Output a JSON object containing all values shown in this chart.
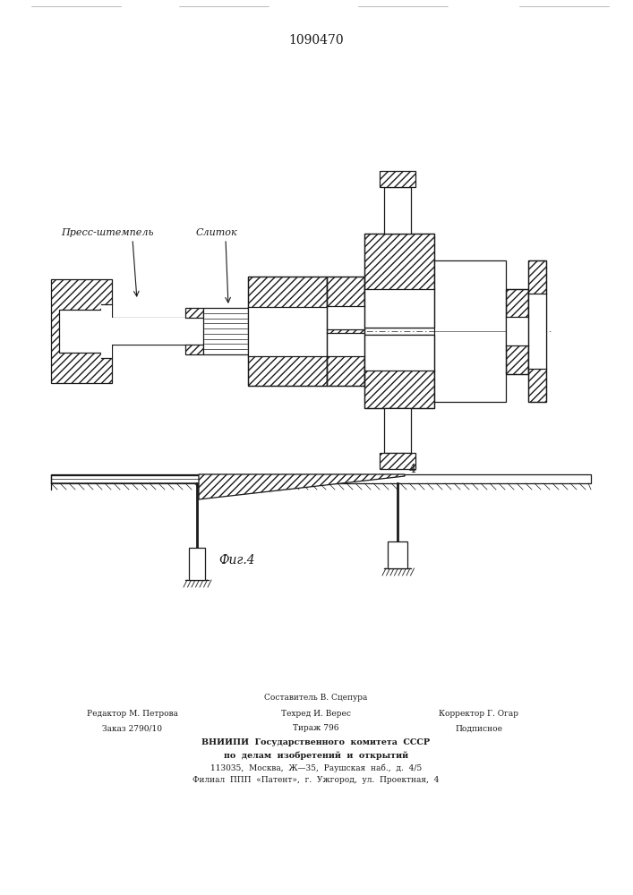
{
  "title": "1090470",
  "fig_label": "Фиг.4",
  "label_press": "Пресс-штемпель",
  "label_slitok": "Слиток",
  "label_4": "4",
  "footer_line1": "Составитель В. Сцепура",
  "footer_line2_left": "Редактор М. Петрова",
  "footer_line2_mid": "Техред И. Верес",
  "footer_line2_right": "Корректор Г. Огар",
  "footer_line3_left": "Заказ 2790/10",
  "footer_line3_mid": "Тираж 796",
  "footer_line3_right": "Подписное",
  "footer_line4": "ВНИИПИ  Государственного  комитета  СССР",
  "footer_line5": "по  делам  изобретений  и  открытий",
  "footer_line6": "113035,  Москва,  Ж—35,  Раушская  наб.,  д.  4/5",
  "footer_line7": "Филиал  ППП  «Патент»,  г.  Ужгород,  ул.  Проектная,  4",
  "bg_color": "#ffffff",
  "line_color": "#1a1a1a"
}
